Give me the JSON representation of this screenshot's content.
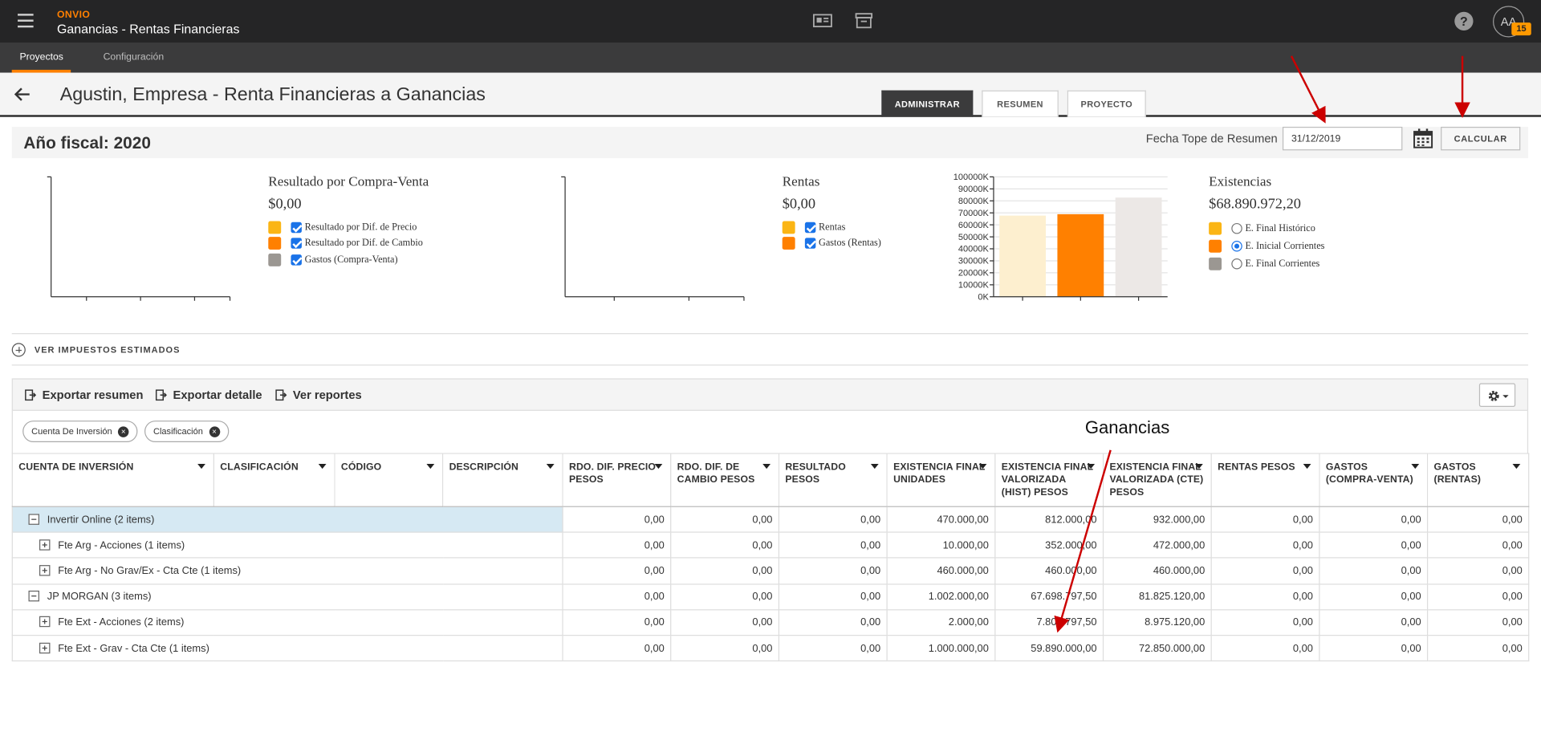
{
  "topbar": {
    "brand": "ONVIO",
    "app_title": "Ganancias - Rentas Financieras",
    "help": "?",
    "avatar_initials": "AA",
    "notification_count": "15"
  },
  "subnav": {
    "tabs": [
      {
        "label": "Proyectos"
      },
      {
        "label": "Configuración"
      }
    ]
  },
  "header": {
    "title": "Agustin, Empresa - Renta Financieras a Ganancias",
    "tabs": [
      {
        "label": "ADMINISTRAR"
      },
      {
        "label": "RESUMEN"
      },
      {
        "label": "PROYECTO"
      }
    ]
  },
  "fiscal": {
    "title": "Año fiscal: 2020",
    "fecha_label": "Fecha Tope de Resumen",
    "fecha_value": "31/12/2019",
    "calc_label": "CALCULAR"
  },
  "colors": {
    "yellow": "#fbb514",
    "orange": "#ff8000",
    "gray": "#9b9792",
    "light_yellow": "#fdefcf",
    "light_gray": "#ece8e6"
  },
  "summaries": {
    "compra_venta": {
      "title": "Resultado por Compra-Venta",
      "value": "$0,00",
      "legend": [
        "Resultado por Dif. de Precio",
        "Resultado por Dif. de Cambio",
        "Gastos (Compra-Venta)"
      ]
    },
    "rentas": {
      "title": "Rentas",
      "value": "$0,00",
      "legend": [
        "Rentas",
        "Gastos (Rentas)"
      ]
    },
    "existencias": {
      "title": "Existencias",
      "value": "$68.890.972,20",
      "legend": [
        "E. Final Histórico",
        "E. Inicial Corrientes",
        "E. Final Corrientes"
      ],
      "selected": 1
    }
  },
  "chart_data": [
    {
      "type": "bar",
      "title": "",
      "ytick_labels": [
        "0K",
        "10000K",
        "20000K",
        "30000K",
        "40000K",
        "50000K",
        "60000K",
        "70000K",
        "80000K",
        "90000K",
        "100000K"
      ],
      "ylim": [
        0,
        100000
      ],
      "series": [
        {
          "name": "E. Final Histórico",
          "values": [
            67699
          ]
        },
        {
          "name": "E. Inicial Corrientes",
          "values": [
            68891
          ]
        },
        {
          "name": "E. Final Corrientes",
          "values": [
            82757
          ]
        }
      ]
    }
  ],
  "impuestos": {
    "label": "VER IMPUESTOS ESTIMADOS"
  },
  "toolbar": {
    "export_summary": "Exportar resumen",
    "export_detail": "Exportar detalle",
    "reports": "Ver reportes"
  },
  "chips": [
    "Cuenta De Inversión",
    "Clasificación"
  ],
  "annotation": {
    "label": "Ganancias"
  },
  "grid": {
    "columns": [
      "CUENTA DE INVERSIÓN",
      "CLASIFICACIÓN",
      "CÓDIGO",
      "DESCRIPCIÓN",
      "RDO. DIF. PRECIO PESOS",
      "RDO. DIF. DE CAMBIO PESOS",
      "RESULTADO PESOS",
      "EXISTENCIA FINAL UNIDADES",
      "EXISTENCIA FINAL VALORIZADA (HIST) PESOS",
      "EXISTENCIA FINAL VALORIZADA (CTE) PESOS",
      "RENTAS PESOS",
      "GASTOS (COMPRA-VENTA)",
      "GASTOS (RENTAS)"
    ],
    "rows": [
      {
        "label": "Invertir Online (2 items)",
        "values": [
          "0,00",
          "0,00",
          "0,00",
          "470.000,00",
          "812.000,00",
          "932.000,00",
          "0,00",
          "0,00",
          "0,00"
        ]
      },
      {
        "label": "Fte Arg - Acciones (1 items)",
        "values": [
          "0,00",
          "0,00",
          "0,00",
          "10.000,00",
          "352.000,00",
          "472.000,00",
          "0,00",
          "0,00",
          "0,00"
        ]
      },
      {
        "label": "Fte Arg - No Grav/Ex - Cta Cte (1 items)",
        "values": [
          "0,00",
          "0,00",
          "0,00",
          "460.000,00",
          "460.000,00",
          "460.000,00",
          "0,00",
          "0,00",
          "0,00"
        ]
      },
      {
        "label": "JP MORGAN (3 items)",
        "values": [
          "0,00",
          "0,00",
          "0,00",
          "1.002.000,00",
          "67.698.797,50",
          "81.825.120,00",
          "0,00",
          "0,00",
          "0,00"
        ]
      },
      {
        "label": "Fte Ext - Acciones (2 items)",
        "values": [
          "0,00",
          "0,00",
          "0,00",
          "2.000,00",
          "7.808.797,50",
          "8.975.120,00",
          "0,00",
          "0,00",
          "0,00"
        ]
      },
      {
        "label": "Fte Ext - Grav - Cta Cte (1 items)",
        "values": [
          "0,00",
          "0,00",
          "0,00",
          "1.000.000,00",
          "59.890.000,00",
          "72.850.000,00",
          "0,00",
          "0,00",
          "0,00"
        ]
      }
    ]
  }
}
